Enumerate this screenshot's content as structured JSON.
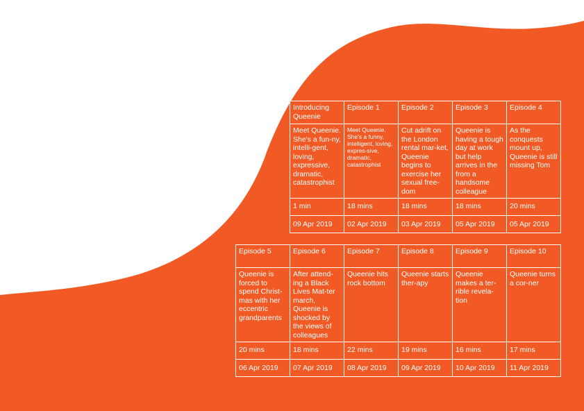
{
  "colors": {
    "background": "#ffffff",
    "accent": "#f15a24",
    "text": "#ffffff"
  },
  "table1": {
    "episodes": [
      {
        "title": "Introducing Queenie",
        "desc": "Meet Queenie. She's a fun-ny, intelli-gent, loving, expressive, dramatic, catastrophist",
        "duration": "1 min",
        "date": "09 Apr 2019"
      },
      {
        "title": "Episode 1",
        "desc": "Meet Queenie. She's a funny, intelligent, loving, expres-sive, dramatic, catastrophist",
        "duration": "18 mins",
        "date": "02 Apr 2019"
      },
      {
        "title": "Episode 2",
        "desc": "Cut adrift on the London rental mar-ket, Queenie begins to exercise her sexual free-dom",
        "duration": "18 mins",
        "date": "03 Apr 2019"
      },
      {
        "title": "Episode 3",
        "desc": "Queenie is having a tough day at work but help arrives in the from a handsome colleague",
        "duration": "18 mins",
        "date": "05 Apr 2019"
      },
      {
        "title": "Episode 4",
        "desc": "As the conquests mount up, Queenie is still missing Tom",
        "duration": "20 mins",
        "date": "05 Apr 2019"
      }
    ]
  },
  "table2": {
    "episodes": [
      {
        "title": "Episode 5",
        "desc": "Queenie is forced to spend Christ-mas with her eccentric grandparents",
        "duration": "20 mins",
        "date": "06 Apr 2019"
      },
      {
        "title": "Episode 6",
        "desc": "After attend-ing a Black Lives Mat-ter march, Queenie is shocked by the views of colleagues",
        "duration": "18 mins",
        "date": "07 Apr 2019"
      },
      {
        "title": "Episode 7",
        "desc": "Queenie hits rock bottom",
        "duration": "22 mins",
        "date": "08 Apr 2019"
      },
      {
        "title": "Episode 8",
        "desc": "Queenie starts ther-apy",
        "duration": "19 mins",
        "date": "09 Apr 2019"
      },
      {
        "title": "Episode 9",
        "desc": "Queenie makes a ter-rible revela-tion",
        "duration": "16 mins",
        "date": "10 Apr 2019"
      },
      {
        "title": "Episode 10",
        "desc": "Queenie turns a cor-ner",
        "duration": "17 mins",
        "date": "11 Apr 2019"
      }
    ]
  }
}
